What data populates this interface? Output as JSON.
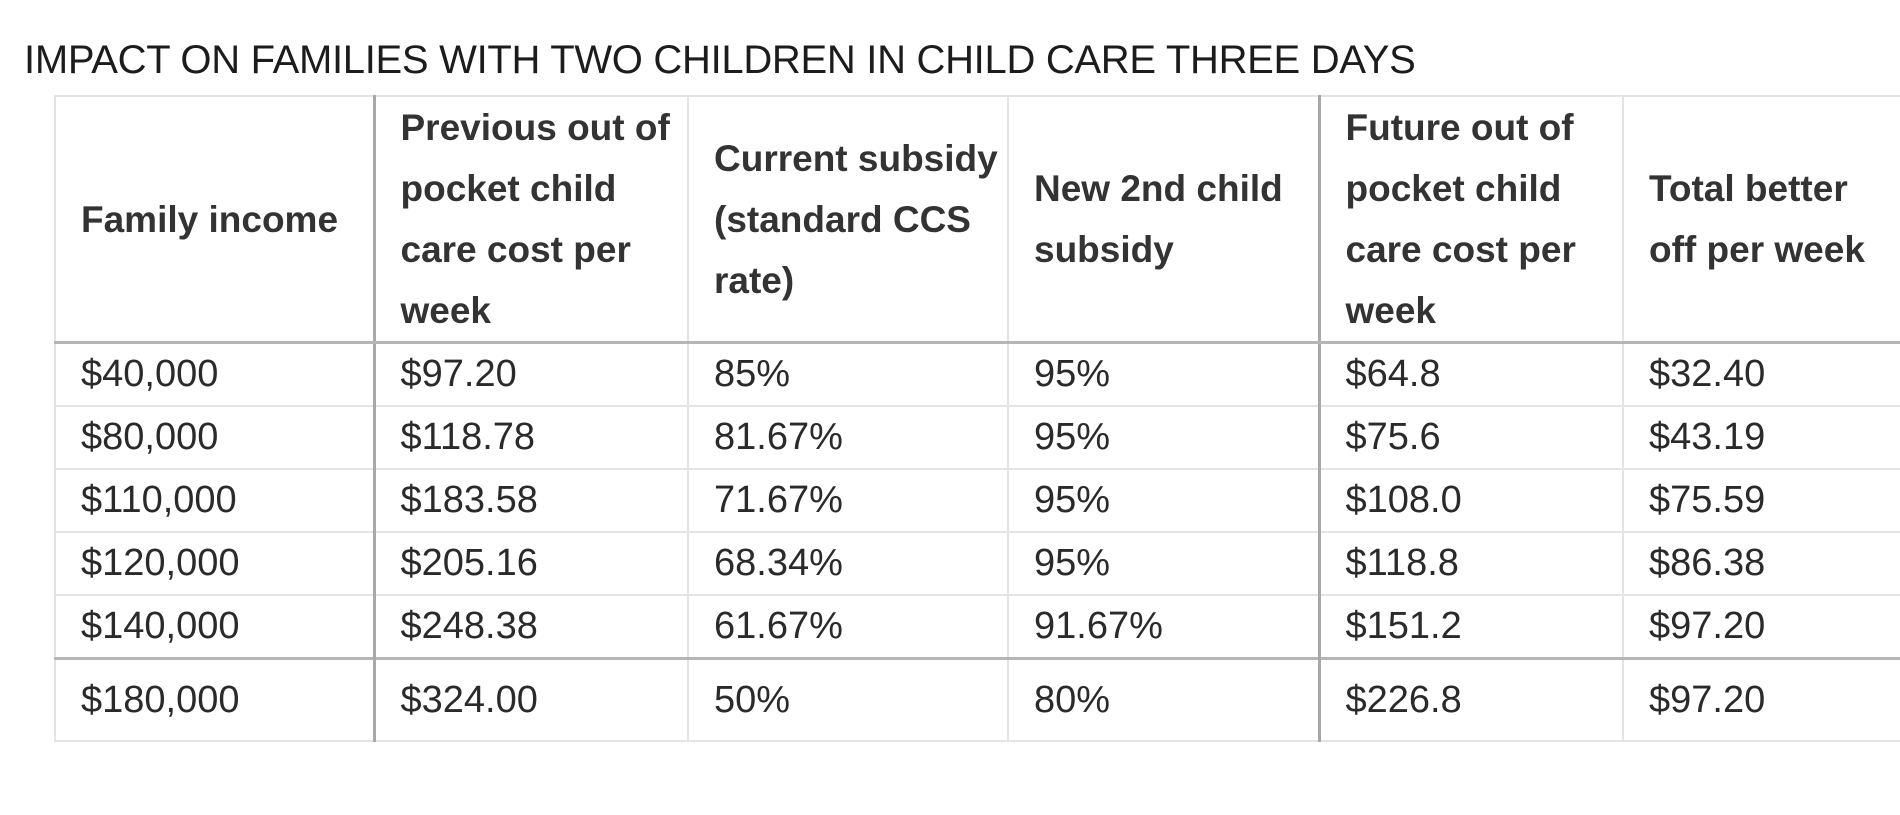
{
  "title": "IMPACT ON FAMILIES WITH TWO CHILDREN IN CHILD CARE THREE DAYS",
  "table": {
    "headers": [
      "Family income",
      "Previous out of pocket child care cost per week",
      "Current subsidy (standard CCS rate)",
      "New 2nd child subsidy",
      "Future out of pocket child care cost per week",
      "Total better off per week"
    ],
    "rows": [
      [
        "$40,000",
        "$97.20",
        "85%",
        "95%",
        "$64.8",
        "$32.40"
      ],
      [
        "$80,000",
        "$118.78",
        "81.67%",
        "95%",
        "$75.6",
        "$43.19"
      ],
      [
        "$110,000",
        "$183.58",
        "71.67%",
        "95%",
        "$108.0",
        "$75.59"
      ],
      [
        "$120,000",
        "$205.16",
        "68.34%",
        "95%",
        "$118.8",
        "$86.38"
      ],
      [
        "$140,000",
        "$248.38",
        "61.67%",
        "91.67%",
        "$151.2",
        "$97.20"
      ],
      [
        "$180,000",
        "$324.00",
        "50%",
        "80%",
        "$226.8",
        "$97.20"
      ]
    ]
  }
}
